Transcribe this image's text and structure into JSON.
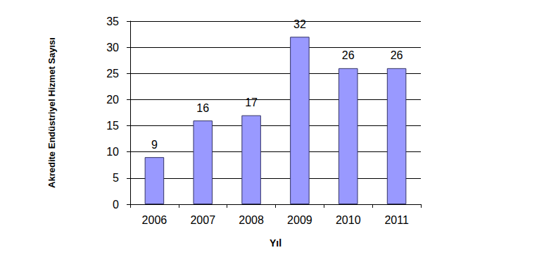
{
  "chart_data": {
    "type": "bar",
    "x_label": "Yıl",
    "y_label": "Akredite Endüstriyel Hizmet Sayısı",
    "categories": [
      "2006",
      "2007",
      "2008",
      "2009",
      "2010",
      "2011"
    ],
    "values": [
      9,
      16,
      17,
      32,
      26,
      26
    ],
    "color": "#9999ff",
    "ylim": [
      0,
      35
    ],
    "yticks": [
      0,
      5,
      10,
      15,
      20,
      25,
      30,
      35
    ],
    "grid": true,
    "data_labels": true
  }
}
